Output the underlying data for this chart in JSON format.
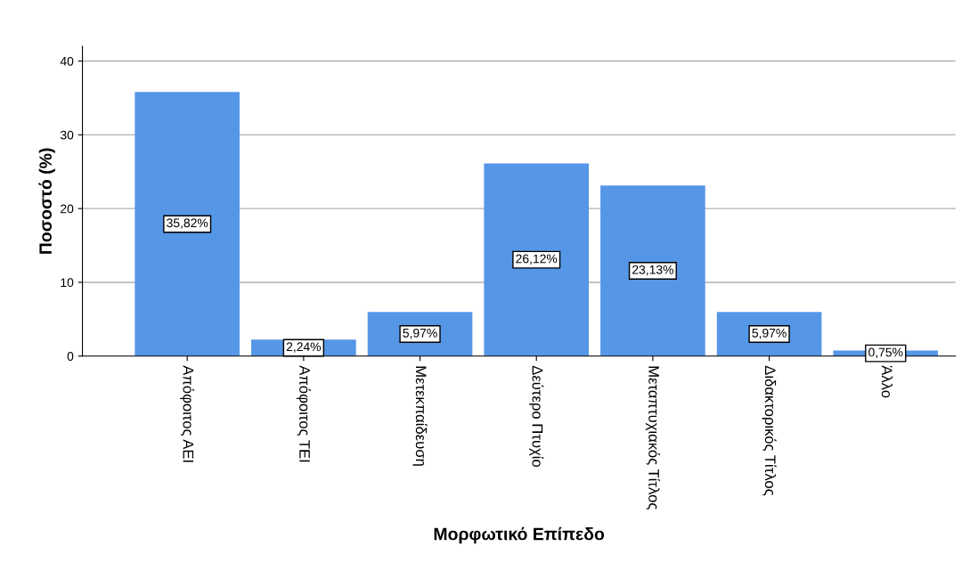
{
  "chart_data": {
    "type": "bar",
    "xlabel": "Μορφωτικό Επίπεδο",
    "ylabel": "Ποσοστό (%)",
    "categories": [
      "Απόφοιτος ΑΕΙ",
      "Απόφοιτος ΤΕΙ",
      "Μετεκπαίδευση",
      "Δεύτερο Πτυχίο",
      "Μεταπτυχιακός Τίτλος",
      "Διδακτορικός Τίτλος",
      "Άλλο"
    ],
    "values": [
      35.82,
      2.24,
      5.97,
      26.12,
      23.13,
      5.97,
      0.75
    ],
    "value_labels": [
      "35,82%",
      "2,24%",
      "5,97%",
      "26,12%",
      "23,13%",
      "5,97%",
      "0,75%"
    ],
    "color": "#5596e6",
    "ylim": [
      0,
      42
    ],
    "yticks": [
      0,
      10,
      20,
      30,
      40
    ],
    "grid": "y"
  }
}
